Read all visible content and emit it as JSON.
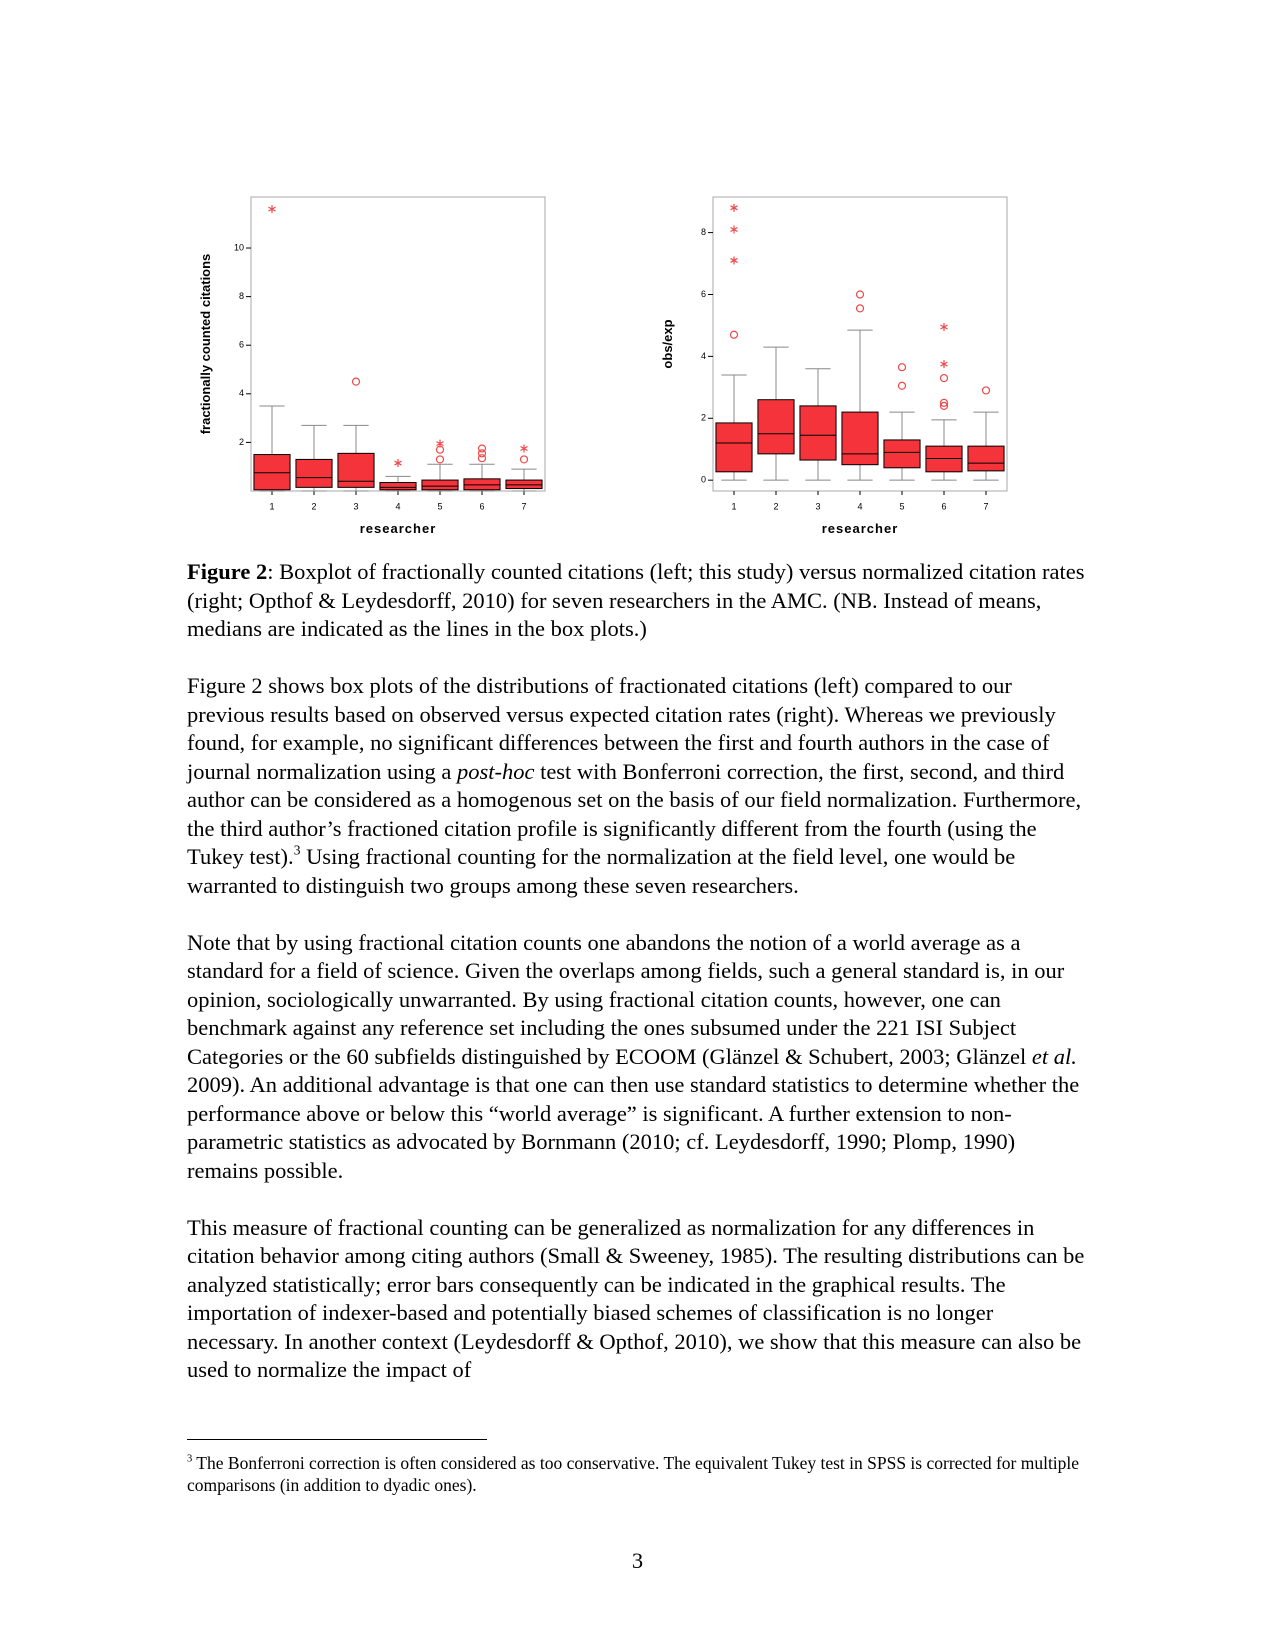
{
  "chart_data": [
    {
      "type": "box",
      "ylabel": "fractionally counted citations",
      "xlabel": "researcher",
      "color": "#f5333a",
      "outlier_color": "#f04848",
      "categories": [
        "1",
        "2",
        "3",
        "4",
        "5",
        "6",
        "7"
      ],
      "ylim": [
        0,
        12.1
      ],
      "yticks": [
        2,
        4,
        6,
        8,
        10
      ],
      "boxes": [
        {
          "whisker_low": 0,
          "q1": 0.05,
          "median": 0.75,
          "q3": 1.5,
          "whisker_high": 3.5,
          "outliers": [],
          "extremes": [
            11.6
          ]
        },
        {
          "whisker_low": 0,
          "q1": 0.15,
          "median": 0.55,
          "q3": 1.3,
          "whisker_high": 2.7,
          "outliers": [],
          "extremes": []
        },
        {
          "whisker_low": 0,
          "q1": 0.15,
          "median": 0.4,
          "q3": 1.55,
          "whisker_high": 2.7,
          "outliers": [
            4.5
          ],
          "extremes": []
        },
        {
          "whisker_low": 0,
          "q1": 0.05,
          "median": 0.15,
          "q3": 0.35,
          "whisker_high": 0.6,
          "outliers": [],
          "extremes": [
            1.15
          ]
        },
        {
          "whisker_low": 0,
          "q1": 0.05,
          "median": 0.2,
          "q3": 0.45,
          "whisker_high": 1.1,
          "outliers": [
            1.3,
            1.7
          ],
          "extremes": [
            1.95
          ]
        },
        {
          "whisker_low": 0,
          "q1": 0.05,
          "median": 0.25,
          "q3": 0.5,
          "whisker_high": 1.1,
          "outliers": [
            1.35,
            1.55,
            1.75
          ],
          "extremes": []
        },
        {
          "whisker_low": 0,
          "q1": 0.1,
          "median": 0.25,
          "q3": 0.45,
          "whisker_high": 0.9,
          "outliers": [
            1.3
          ],
          "extremes": [
            1.75
          ]
        }
      ]
    },
    {
      "type": "box",
      "ylabel": "obs/exp",
      "xlabel": "researcher",
      "color": "#f5333a",
      "outlier_color": "#f04848",
      "categories": [
        "1",
        "2",
        "3",
        "4",
        "5",
        "6",
        "7"
      ],
      "ylim": [
        -0.35,
        9.15
      ],
      "yticks": [
        0,
        2,
        4,
        6,
        8
      ],
      "boxes": [
        {
          "whisker_low": 0,
          "q1": 0.27,
          "median": 1.2,
          "q3": 1.85,
          "whisker_high": 3.4,
          "outliers": [
            4.7
          ],
          "extremes": [
            7.1,
            8.1,
            8.8
          ]
        },
        {
          "whisker_low": 0,
          "q1": 0.85,
          "median": 1.5,
          "q3": 2.6,
          "whisker_high": 4.3,
          "outliers": [],
          "extremes": []
        },
        {
          "whisker_low": 0,
          "q1": 0.65,
          "median": 1.45,
          "q3": 2.4,
          "whisker_high": 3.6,
          "outliers": [],
          "extremes": []
        },
        {
          "whisker_low": 0,
          "q1": 0.5,
          "median": 0.85,
          "q3": 2.2,
          "whisker_high": 4.85,
          "outliers": [
            5.55,
            6.0
          ],
          "extremes": []
        },
        {
          "whisker_low": 0,
          "q1": 0.4,
          "median": 0.9,
          "q3": 1.3,
          "whisker_high": 2.2,
          "outliers": [
            3.05,
            3.65
          ],
          "extremes": []
        },
        {
          "whisker_low": 0,
          "q1": 0.27,
          "median": 0.7,
          "q3": 1.1,
          "whisker_high": 1.95,
          "outliers": [
            2.4,
            2.5,
            3.3
          ],
          "extremes": [
            3.75,
            4.95
          ]
        },
        {
          "whisker_low": 0,
          "q1": 0.3,
          "median": 0.55,
          "q3": 1.1,
          "whisker_high": 2.2,
          "outliers": [
            2.9
          ],
          "extremes": []
        }
      ]
    }
  ],
  "caption": {
    "label": "Figure 2",
    "text": ": Boxplot of fractionally counted citations (left; this study) versus normalized citation rates (right; Opthof & Leydesdorff, 2010) for seven researchers in the AMC. (NB. Instead of means, medians are indicated as the lines in the box plots.)"
  },
  "paragraphs": [
    [
      "Figure 2 shows box plots of the distributions of fractionated citations (left) compared to our previous results based on observed versus expected citation rates (right). Whereas we previously found, for example, no significant differences between the first and fourth authors in the case of journal normalization using a ",
      "post-hoc",
      " test with Bonferroni correction, the first, second, and third author can be considered as a homogenous set on the basis of our field normalization. Furthermore, the third author’s fractioned citation profile is significantly different from the fourth (using the Tukey test).",
      "3",
      " Using fractional counting for the normalization at the field level, one would be warranted to distinguish two groups among these seven researchers."
    ],
    [
      "Note that by using fractional citation counts one abandons the notion of a world average as a standard for a field of science. Given the overlaps among fields, such a general standard is, in our opinion, sociologically unwarranted. By using fractional citation counts, however, one can benchmark against any reference set including the ones subsumed under the 221 ISI Subject Categories or the 60 subfields distinguished by ECOOM (Glänzel & Schubert, 2003; Glänzel ",
      "et al.",
      " 2009). An additional advantage is that one can then use standard statistics to determine whether the performance above or below this “world average” is significant. A further extension to non-parametric statistics as advocated by Bornmann (2010; cf. Leydesdorff, 1990; Plomp, 1990) remains possible."
    ],
    [
      "This measure of fractional counting can be generalized as normalization for any differences in citation behavior among citing authors (Small & Sweeney, 1985). The resulting distributions can be analyzed statistically; error bars consequently can be indicated in the graphical results. The importation of indexer-based and potentially biased schemes of classification is no longer necessary. In another context (Leydesdorff & Opthof, 2010), we show that this measure can also be used to normalize the impact of"
    ]
  ],
  "footnote": {
    "mark": "3",
    "text": " The Bonferroni correction is often considered as too conservative. The equivalent Tukey test in SPSS is corrected for multiple comparisons (in addition to dyadic ones)."
  },
  "page_number": "3"
}
